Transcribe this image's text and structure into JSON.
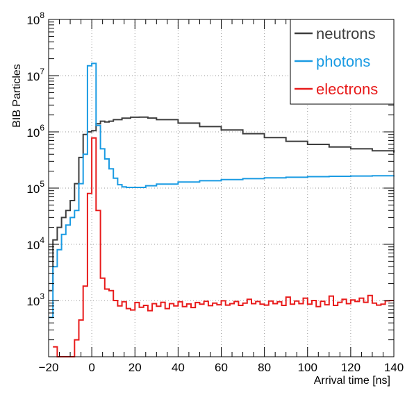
{
  "chart_data": {
    "type": "line",
    "title": "",
    "xlabel": "Arrival time [ns]",
    "ylabel": "BIB Particles",
    "xlim": [
      -20,
      140
    ],
    "ylim": [
      100,
      100000000
    ],
    "log_y": true,
    "grid": true,
    "legend_position": "top-right",
    "x_ticks": [
      {
        "value": -20,
        "label": "−20"
      },
      {
        "value": 0,
        "label": "0"
      },
      {
        "value": 20,
        "label": "20"
      },
      {
        "value": 40,
        "label": "40"
      },
      {
        "value": 60,
        "label": "60"
      },
      {
        "value": 80,
        "label": "80"
      },
      {
        "value": 100,
        "label": "100"
      },
      {
        "value": 120,
        "label": "120"
      },
      {
        "value": 140,
        "label": "140"
      }
    ],
    "y_ticks": [
      {
        "value": 1000,
        "base": "10",
        "exp": "3"
      },
      {
        "value": 10000,
        "base": "10",
        "exp": "4"
      },
      {
        "value": 100000,
        "base": "10",
        "exp": "5"
      },
      {
        "value": 1000000,
        "base": "10",
        "exp": "6"
      },
      {
        "value": 10000000,
        "base": "10",
        "exp": "7"
      },
      {
        "value": 100000000,
        "base": "10",
        "exp": "8"
      }
    ],
    "series": [
      {
        "name": "neutrons",
        "color": "#3d3d3d",
        "points": [
          [
            -20,
            1500
          ],
          [
            -18,
            12000
          ],
          [
            -16,
            20000
          ],
          [
            -14,
            30000
          ],
          [
            -12,
            40000
          ],
          [
            -10,
            60000
          ],
          [
            -8,
            120000
          ],
          [
            -6,
            350000
          ],
          [
            -4,
            900000
          ],
          [
            -2,
            1000000
          ],
          [
            0,
            1050000
          ],
          [
            2,
            1400000
          ],
          [
            4,
            1550000
          ],
          [
            6,
            1500000
          ],
          [
            8,
            1550000
          ],
          [
            10,
            1650000
          ],
          [
            14,
            1750000
          ],
          [
            18,
            1820000
          ],
          [
            22,
            1830000
          ],
          [
            26,
            1760000
          ],
          [
            30,
            1650000
          ],
          [
            40,
            1430000
          ],
          [
            50,
            1240000
          ],
          [
            60,
            1080000
          ],
          [
            70,
            930000
          ],
          [
            80,
            790000
          ],
          [
            90,
            680000
          ],
          [
            100,
            600000
          ],
          [
            110,
            540000
          ],
          [
            120,
            500000
          ],
          [
            130,
            460000
          ],
          [
            140,
            430000
          ]
        ]
      },
      {
        "name": "photons",
        "color": "#1a9be3",
        "points": [
          [
            -20,
            500
          ],
          [
            -18,
            4000
          ],
          [
            -16,
            8000
          ],
          [
            -14,
            15000
          ],
          [
            -12,
            22000
          ],
          [
            -10,
            30000
          ],
          [
            -8,
            40000
          ],
          [
            -6,
            120000
          ],
          [
            -4,
            400000
          ],
          [
            -2,
            15000000
          ],
          [
            0,
            16500000
          ],
          [
            2,
            1300000
          ],
          [
            4,
            500000
          ],
          [
            6,
            330000
          ],
          [
            8,
            220000
          ],
          [
            10,
            150000
          ],
          [
            12,
            115000
          ],
          [
            14,
            105000
          ],
          [
            16,
            103000
          ],
          [
            20,
            103000
          ],
          [
            25,
            110000
          ],
          [
            30,
            118000
          ],
          [
            40,
            128000
          ],
          [
            50,
            135000
          ],
          [
            60,
            142000
          ],
          [
            70,
            147000
          ],
          [
            80,
            152000
          ],
          [
            90,
            156000
          ],
          [
            100,
            160000
          ],
          [
            110,
            162000
          ],
          [
            120,
            164000
          ],
          [
            130,
            166000
          ],
          [
            140,
            168000
          ]
        ]
      },
      {
        "name": "electrons",
        "color": "#e81b1b",
        "points": [
          [
            -18,
            150
          ],
          [
            -16,
            80
          ],
          [
            -14,
            80
          ],
          [
            -10,
            100
          ],
          [
            -8,
            200
          ],
          [
            -6,
            450
          ],
          [
            -4,
            1800
          ],
          [
            -2,
            80000
          ],
          [
            0,
            780000
          ],
          [
            2,
            40000
          ],
          [
            4,
            2500
          ],
          [
            6,
            1600
          ],
          [
            8,
            1500
          ],
          [
            10,
            1000
          ],
          [
            12,
            800
          ],
          [
            14,
            950
          ],
          [
            16,
            720
          ],
          [
            18,
            680
          ],
          [
            20,
            920
          ],
          [
            22,
            760
          ],
          [
            24,
            820
          ],
          [
            26,
            660
          ],
          [
            28,
            880
          ],
          [
            30,
            790
          ],
          [
            32,
            930
          ],
          [
            34,
            720
          ],
          [
            36,
            880
          ],
          [
            38,
            800
          ],
          [
            40,
            950
          ],
          [
            42,
            780
          ],
          [
            44,
            870
          ],
          [
            46,
            750
          ],
          [
            48,
            920
          ],
          [
            50,
            860
          ],
          [
            52,
            970
          ],
          [
            54,
            810
          ],
          [
            56,
            900
          ],
          [
            58,
            840
          ],
          [
            60,
            990
          ],
          [
            62,
            830
          ],
          [
            64,
            880
          ],
          [
            66,
            960
          ],
          [
            68,
            820
          ],
          [
            70,
            900
          ],
          [
            72,
            1050
          ],
          [
            74,
            880
          ],
          [
            76,
            960
          ],
          [
            78,
            860
          ],
          [
            80,
            830
          ],
          [
            82,
            980
          ],
          [
            84,
            880
          ],
          [
            86,
            950
          ],
          [
            88,
            820
          ],
          [
            90,
            1150
          ],
          [
            92,
            860
          ],
          [
            94,
            980
          ],
          [
            96,
            880
          ],
          [
            98,
            1100
          ],
          [
            100,
            860
          ],
          [
            102,
            1000
          ],
          [
            104,
            780
          ],
          [
            106,
            970
          ],
          [
            108,
            840
          ],
          [
            110,
            1200
          ],
          [
            112,
            820
          ],
          [
            114,
            930
          ],
          [
            116,
            1050
          ],
          [
            118,
            880
          ],
          [
            120,
            1020
          ],
          [
            122,
            960
          ],
          [
            124,
            1100
          ],
          [
            126,
            930
          ],
          [
            128,
            1230
          ],
          [
            130,
            900
          ],
          [
            132,
            830
          ],
          [
            134,
            860
          ],
          [
            136,
            990
          ],
          [
            138,
            1000
          ],
          [
            140,
            1000
          ]
        ]
      }
    ]
  }
}
